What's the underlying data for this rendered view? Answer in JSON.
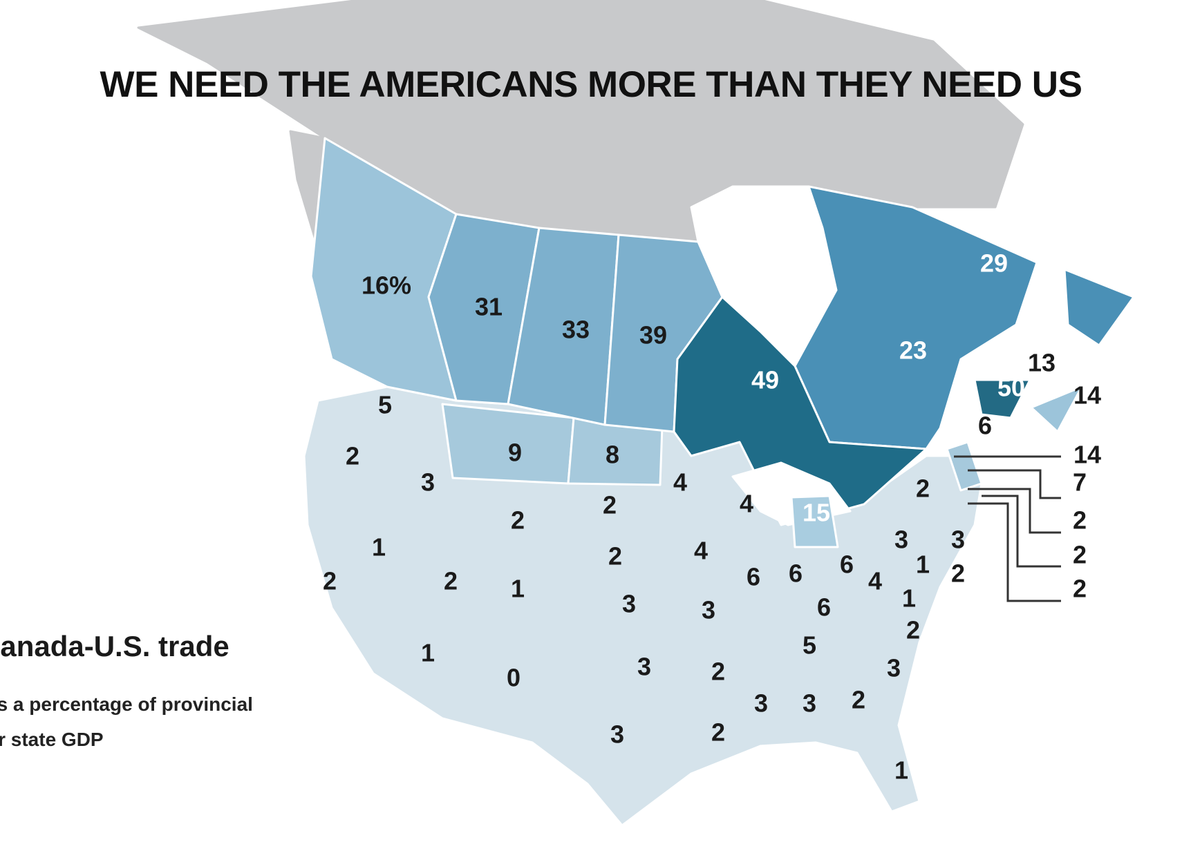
{
  "title": "WE NEED THE AMERICANS MORE THAN THEY NEED US",
  "legend": {
    "title": "Canada-U.S. trade",
    "subtitle_line1": "as a percentage of provincial",
    "subtitle_line2": "or state GDP"
  },
  "colors": {
    "north_grey": "#c8c9cb",
    "us_light": "#d5e3eb",
    "bc": "#9cc4da",
    "prairies": "#7db0cd",
    "quebec": "#4a90b6",
    "ontario": "#1f6c88",
    "new_brunswick": "#236a84",
    "montana_nd": "#a6c9dc",
    "michigan": "#a9cde0",
    "label_dark": "#1a1a1a",
    "label_light": "#ffffff"
  },
  "provinces": [
    {
      "value": "16%",
      "light": false
    },
    {
      "value": "31",
      "light": false
    },
    {
      "value": "33",
      "light": false
    },
    {
      "value": "39",
      "light": false
    },
    {
      "value": "49",
      "light": true
    },
    {
      "value": "23",
      "light": true
    },
    {
      "value": "29",
      "light": true
    },
    {
      "value": "50",
      "light": true
    },
    {
      "value": "13",
      "light": false
    },
    {
      "value": "14",
      "light": false
    }
  ],
  "states": [
    "6",
    "14",
    "7",
    "2",
    "2",
    "2",
    "5",
    "2",
    "3",
    "9",
    "8",
    "4",
    "2",
    "2",
    "4",
    "15",
    "2",
    "1",
    "2",
    "2",
    "1",
    "2",
    "4",
    "6",
    "6",
    "6",
    "4",
    "3",
    "3",
    "1",
    "2",
    "1",
    "3",
    "3",
    "6",
    "2",
    "5",
    "1",
    "0",
    "3",
    "2",
    "3",
    "3",
    "3",
    "2",
    "3",
    "2",
    "1"
  ]
}
